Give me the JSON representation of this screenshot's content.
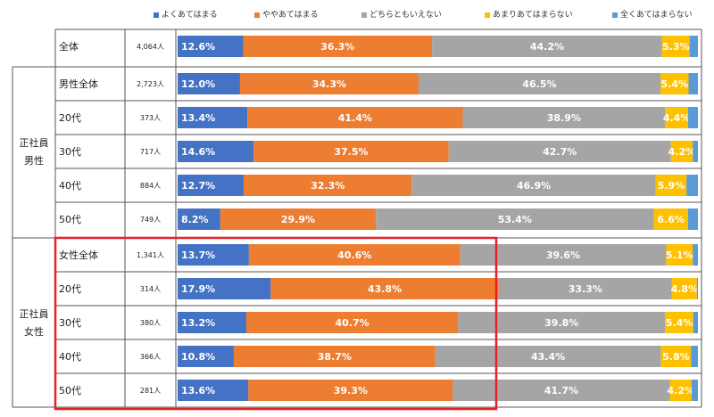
{
  "colors": {
    "very_true": "#4472c4",
    "somewhat_true": "#ed7d31",
    "neutral": "#a5a5a5",
    "not_very_true": "#ffc000",
    "not_true_at_all": "#5b9bd5",
    "highlight_box": "#e8202a",
    "grid": "#555555"
  },
  "legend": [
    {
      "label": "よくあてはまる",
      "color": "#4472c4"
    },
    {
      "label": "ややあてはまる",
      "color": "#ed7d31"
    },
    {
      "label": "どちらともいえない",
      "color": "#a5a5a5"
    },
    {
      "label": "あまりあてはまらない",
      "color": "#ffc000"
    },
    {
      "label": "全くあてはまらない",
      "color": "#5b9bd5"
    }
  ],
  "chart_data": {
    "type": "bar",
    "orientation": "horizontal",
    "stacked": true,
    "normalized": true,
    "xlim": [
      0,
      100
    ],
    "categories": [
      "全体",
      "男性全体",
      "20代",
      "30代",
      "40代",
      "50代",
      "女性全体",
      "20代",
      "30代",
      "40代",
      "50代"
    ],
    "counts": [
      "4,064人",
      "2,723人",
      "373人",
      "717人",
      "884人",
      "749人",
      "1,341人",
      "314人",
      "380人",
      "366人",
      "281人"
    ],
    "groups": [
      {
        "label_lines": [
          "正社員",
          "男性"
        ],
        "rows": [
          1,
          2,
          3,
          4,
          5
        ]
      },
      {
        "label_lines": [
          "正社員",
          "女性"
        ],
        "rows": [
          6,
          7,
          8,
          9,
          10
        ]
      }
    ],
    "highlighted_rows": [
      6,
      7,
      8,
      9,
      10
    ],
    "series": [
      {
        "name": "よくあてはまる",
        "color": "#4472c4",
        "values": [
          12.6,
          12.0,
          13.4,
          14.6,
          12.7,
          8.2,
          13.7,
          17.9,
          13.2,
          10.8,
          13.6
        ],
        "labels": [
          "12.6%",
          "12.0%",
          "13.4%",
          "14.6%",
          "12.7%",
          "8.2%",
          "13.7%",
          "17.9%",
          "13.2%",
          "10.8%",
          "13.6%"
        ]
      },
      {
        "name": "ややあてはまる",
        "color": "#ed7d31",
        "values": [
          36.3,
          34.3,
          41.4,
          37.5,
          32.3,
          29.9,
          40.6,
          43.8,
          40.7,
          38.7,
          39.3
        ],
        "labels": [
          "36.3%",
          "34.3%",
          "41.4%",
          "37.5%",
          "32.3%",
          "29.9%",
          "40.6%",
          "43.8%",
          "40.7%",
          "38.7%",
          "39.3%"
        ]
      },
      {
        "name": "どちらともいえない",
        "color": "#a5a5a5",
        "values": [
          44.2,
          46.5,
          38.9,
          42.7,
          46.9,
          53.4,
          39.6,
          33.3,
          39.8,
          43.4,
          41.7
        ],
        "labels": [
          "44.2%",
          "46.5%",
          "38.9%",
          "42.7%",
          "46.9%",
          "53.4%",
          "39.6%",
          "33.3%",
          "39.8%",
          "43.4%",
          "41.7%"
        ]
      },
      {
        "name": "あまりあてはまらない",
        "color": "#ffc000",
        "values": [
          5.3,
          5.4,
          4.4,
          4.2,
          5.9,
          6.6,
          5.1,
          4.8,
          5.4,
          5.8,
          4.2
        ],
        "labels": [
          "5.3%",
          "5.4%",
          "4.4%",
          "4.2%",
          "5.9%",
          "6.6%",
          "5.1%",
          "4.8%",
          "5.4%",
          "5.8%",
          "4.2%"
        ]
      },
      {
        "name": "全くあてはまらない",
        "color": "#5b9bd5",
        "values": [
          1.6,
          1.8,
          1.9,
          1.0,
          2.2,
          1.9,
          1.0,
          0.2,
          0.9,
          1.3,
          1.2
        ],
        "labels": []
      }
    ]
  }
}
